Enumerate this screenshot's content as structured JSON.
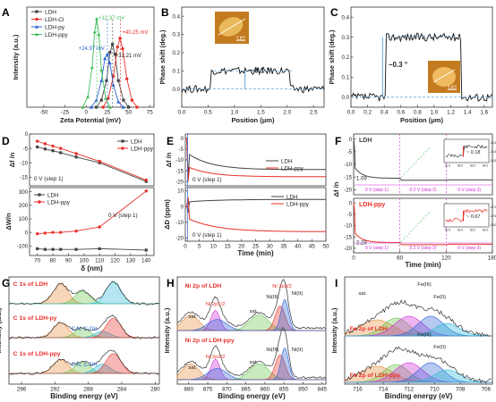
{
  "colors": {
    "ldh": "#444444",
    "ldh_cl": "#e8302a",
    "ldh_py": "#2b63d8",
    "ldh_ppy": "#3fbf5a",
    "magenta": "#d02ad4",
    "orange": "#e78a3a",
    "green": "#66c24a",
    "cyan": "#29b8d6",
    "dash": "#6aa6d8"
  },
  "chart_data": [
    {
      "panel": "A",
      "type": "line",
      "xlabel": "Zeta Potential (mV)",
      "ylabel": "Intensity (a.u.)",
      "xlim": [
        -70,
        80
      ],
      "x_ticks": [
        -50,
        -25,
        0,
        25,
        50,
        75
      ],
      "series": [
        {
          "name": "LDH",
          "peak": 31.21,
          "x": [
            12,
            18,
            24,
            28,
            31,
            34,
            38,
            44,
            50
          ],
          "y": [
            0,
            0.08,
            0.3,
            0.62,
            0.71,
            0.6,
            0.3,
            0.08,
            0
          ]
        },
        {
          "name": "LDH-Cl",
          "peak": 40.25,
          "x": [
            20,
            26,
            32,
            37,
            40,
            43,
            48,
            54,
            60
          ],
          "y": [
            0,
            0.1,
            0.35,
            0.68,
            0.78,
            0.66,
            0.32,
            0.08,
            0
          ]
        },
        {
          "name": "LDH-py",
          "peak": 24.97,
          "x": [
            6,
            12,
            18,
            22,
            25,
            28,
            32,
            38,
            44
          ],
          "y": [
            0,
            0.08,
            0.3,
            0.55,
            0.6,
            0.5,
            0.25,
            0.06,
            0
          ]
        },
        {
          "name": "LDH-ppy",
          "peak": 12.37,
          "x": [
            -4,
            2,
            7,
            10,
            12.4,
            15,
            18,
            23,
            28
          ],
          "y": [
            0,
            0.12,
            0.45,
            0.85,
            1.0,
            0.82,
            0.42,
            0.1,
            0
          ]
        }
      ],
      "annotations": [
        "+12.37 mV",
        "+40.25 mV",
        "+24.97 mV",
        "+31.21 mV"
      ]
    },
    {
      "panel": "B",
      "type": "line",
      "xlabel": "Position (μm)",
      "ylabel": "Phase shift (deg.)",
      "xlim": [
        0,
        2.7
      ],
      "ylim": [
        -0.1,
        0.45
      ],
      "x_ticks": [
        0.0,
        0.5,
        1.0,
        1.5,
        2.0,
        2.5
      ],
      "x_tick_labels": [
        "0.0",
        "0.5",
        "1.0",
        "1.5",
        "2.0",
        "2.5"
      ],
      "y_ticks": [
        0.0,
        0.1,
        0.2,
        0.3,
        0.4
      ],
      "y_tick_labels": [
        "0.0",
        "0.1",
        "0.2",
        "0.3",
        "0.4"
      ],
      "annotation": "~0.1 °",
      "inset_scale": "1 μm"
    },
    {
      "panel": "C",
      "type": "line",
      "xlabel": "Position (μm)",
      "ylabel": "Phase shift (deg.)",
      "xlim": [
        0,
        1.7
      ],
      "ylim": [
        -0.05,
        0.45
      ],
      "x_ticks": [
        0.0,
        0.2,
        0.4,
        0.6,
        0.8,
        1.0,
        1.2,
        1.4,
        1.6
      ],
      "x_tick_labels": [
        "0.0",
        "0.2",
        "0.4",
        "0.6",
        "0.8",
        "1.0",
        "1.2",
        "1.4",
        "1.6"
      ],
      "y_ticks": [
        0.0,
        0.1,
        0.2,
        0.3,
        0.4
      ],
      "y_tick_labels": [
        "0.0",
        "0.1",
        "0.2",
        "0.3",
        "0.4"
      ],
      "annotation": "~0.3 °",
      "inset_scale": "1 μm"
    },
    {
      "panel": "D",
      "type": "line",
      "xlabel": "δ (nm)",
      "xlim": [
        65,
        145
      ],
      "x_ticks": [
        70,
        80,
        90,
        100,
        110,
        120,
        130,
        140
      ],
      "top": {
        "ylabel": "Δf /n",
        "ylim": [
          -18,
          0
        ],
        "y_ticks": [
          0,
          -5,
          -10,
          -15
        ],
        "y_tick_labels": [
          "0",
          "-5",
          "-10",
          "-15"
        ],
        "note": "0 V (step 1)",
        "series": [
          {
            "name": "LDH",
            "x": [
              70,
              75,
              80,
              85,
              95,
              110,
              140
            ],
            "y": [
              -4.5,
              -5.2,
              -5.8,
              -6.5,
              -8.0,
              -10.0,
              -16.5
            ]
          },
          {
            "name": "LDH-ppy",
            "x": [
              70,
              75,
              80,
              85,
              95,
              110,
              140
            ],
            "y": [
              -2.5,
              -3.4,
              -4.2,
              -5.0,
              -6.8,
              -9.5,
              -16.0
            ]
          }
        ]
      },
      "bottom": {
        "ylabel": "ΔW/n",
        "ylim": [
          -170,
          330
        ],
        "y_ticks": [
          300,
          200,
          100,
          0,
          -100
        ],
        "y_tick_labels": [
          "300",
          "200",
          "100",
          "0",
          "-100"
        ],
        "note": "0 V (step 1)",
        "series": [
          {
            "name": "LDH",
            "x": [
              70,
              75,
              80,
              85,
              95,
              110,
              140
            ],
            "y": [
              -120,
              -125,
              -125,
              -125,
              -125,
              -120,
              -130
            ]
          },
          {
            "name": "LDH-ppy",
            "x": [
              70,
              75,
              80,
              85,
              95,
              110,
              140
            ],
            "y": [
              -10,
              -5,
              0,
              0,
              10,
              40,
              305
            ]
          }
        ]
      }
    },
    {
      "panel": "E",
      "type": "line",
      "xlabel": "Time (min)",
      "xlim": [
        0,
        50
      ],
      "x_ticks": [
        0,
        5,
        10,
        15,
        20,
        25,
        30,
        35,
        40,
        45,
        50
      ],
      "top": {
        "ylabel": "Δf /n",
        "ylim": [
          -22,
          2
        ],
        "y_ticks": [
          0,
          -5,
          -10,
          -15,
          -20
        ],
        "y_tick_labels": [
          "0",
          "-5",
          "-10",
          "-15",
          "-20"
        ],
        "note": "0 V (step 1)",
        "series": [
          {
            "name": "LDH",
            "t0": -7.5,
            "tend": -14.5,
            "dip": -18
          },
          {
            "name": "LDH-ppy",
            "t0": -13.5,
            "tend": -17.8,
            "dip": -20
          }
        ]
      },
      "bottom": {
        "ylabel": "ΔD (ppm)",
        "ylim": [
          -22,
          12
        ],
        "y_ticks": [
          10,
          0,
          -10,
          -20
        ],
        "y_tick_labels": [
          "10",
          "0",
          "-10",
          "-20"
        ],
        "note": "0 V (step 1)",
        "series": [
          {
            "name": "LDH",
            "t0": 3,
            "tend": 4.5
          },
          {
            "name": "LDH-ppy",
            "t0": -8,
            "tend": -16
          }
        ]
      }
    },
    {
      "panel": "F",
      "type": "line",
      "xlabel": "Time (min)",
      "ylabel": "Δf /n",
      "xlim": [
        0,
        180
      ],
      "x_ticks": [
        0,
        60,
        120,
        180
      ],
      "top": {
        "label": "LDH",
        "ylim": [
          -22,
          2
        ],
        "y_ticks": [
          0,
          -5,
          -10,
          -15,
          -20
        ],
        "y_tick_labels": [
          "0",
          "-5",
          "-10",
          "-15",
          "-20"
        ],
        "value_label": "1.09",
        "steps": [
          "0 V (step 1)",
          "0.2 V (step 2)",
          "0 V (step 3)"
        ],
        "inset_value": "~ 0.18",
        "inset_x_ticks": [
          "61.0",
          "62.0",
          "63.0",
          "64.0"
        ],
        "inset_y_ticks": [
          "-16.30",
          "-16.40",
          "-16.50"
        ]
      },
      "bottom": {
        "label": "LDH-ppy",
        "ylim": [
          -22,
          2
        ],
        "y_ticks": [
          0,
          -5,
          -10,
          -15,
          -20
        ],
        "y_tick_labels": [
          "0",
          "-5",
          "-10",
          "-15",
          "-20"
        ],
        "value_label": "2.29",
        "steps": [
          "0 V (step 1)",
          "0.2 V (step 2)",
          "0 V (step 3)"
        ],
        "inset_value": "~ 0.67",
        "inset_x_ticks": [
          "60.0",
          "61.0",
          "62.0",
          "63.0"
        ],
        "inset_y_ticks": [
          "-17.0",
          "-17.5",
          "-18.0"
        ]
      }
    },
    {
      "panel": "G",
      "type": "line",
      "xlabel": "Binding energy (eV)",
      "ylabel": "Intensity (a.u.)",
      "x_ticks": [
        296,
        292,
        288,
        284,
        280
      ],
      "xlim": [
        297.5,
        279.5
      ],
      "spectra": [
        {
          "label": "C 1s of LDH",
          "peaks": [
            291.3,
            288.7,
            285.0
          ],
          "heights": [
            0.85,
            0.55,
            0.95
          ]
        },
        {
          "label": "C 1s of LDH-py",
          "peaks": [
            291.3,
            288.7,
            286.3,
            285.0
          ],
          "heights": [
            0.7,
            0.45,
            0.3,
            0.9
          ],
          "note": "C-N, C-OH"
        },
        {
          "label": "C 1s of LDH-ppy",
          "peaks": [
            291.3,
            288.7,
            286.3,
            285.0
          ],
          "heights": [
            0.6,
            0.5,
            0.4,
            0.85
          ],
          "note": "C-N, C-OH"
        }
      ]
    },
    {
      "panel": "H",
      "type": "line",
      "xlabel": "Binding energy (eV)",
      "ylabel": "Intensity (a.u.)",
      "x_ticks": [
        880,
        875,
        870,
        865,
        860,
        855,
        850,
        845
      ],
      "xlim": [
        883,
        844
      ],
      "spectra": [
        {
          "label": "Ni 2p of LDH",
          "labels": [
            "sat.",
            "Ni 2p1/2",
            "sat.",
            "Ni(III)",
            "Ni 2p3/2",
            "Ni(II)"
          ]
        },
        {
          "label": "Ni 2p of LDH-ppy",
          "labels": [
            "sat.",
            "Ni 2p1/2",
            "sat.",
            "Ni(III)",
            "Ni(II)"
          ]
        }
      ]
    },
    {
      "panel": "I",
      "type": "line",
      "xlabel": "Binding energy (eV)",
      "ylabel": "Intensity (a.u.)",
      "x_ticks": [
        716,
        714,
        712,
        710,
        708,
        706
      ],
      "xlim": [
        717,
        705.5
      ],
      "spectra": [
        {
          "label": "Fe 2p of LDH",
          "labels": [
            "sat.",
            "Fe(III)",
            "Fe(II)"
          ]
        },
        {
          "label": "Fe 2p of LDH-ppy",
          "labels": [
            "Fe(III)",
            "Fe(II)"
          ]
        }
      ]
    }
  ],
  "panel_letters": [
    "A",
    "B",
    "C",
    "D",
    "E",
    "F",
    "G",
    "H",
    "I"
  ]
}
